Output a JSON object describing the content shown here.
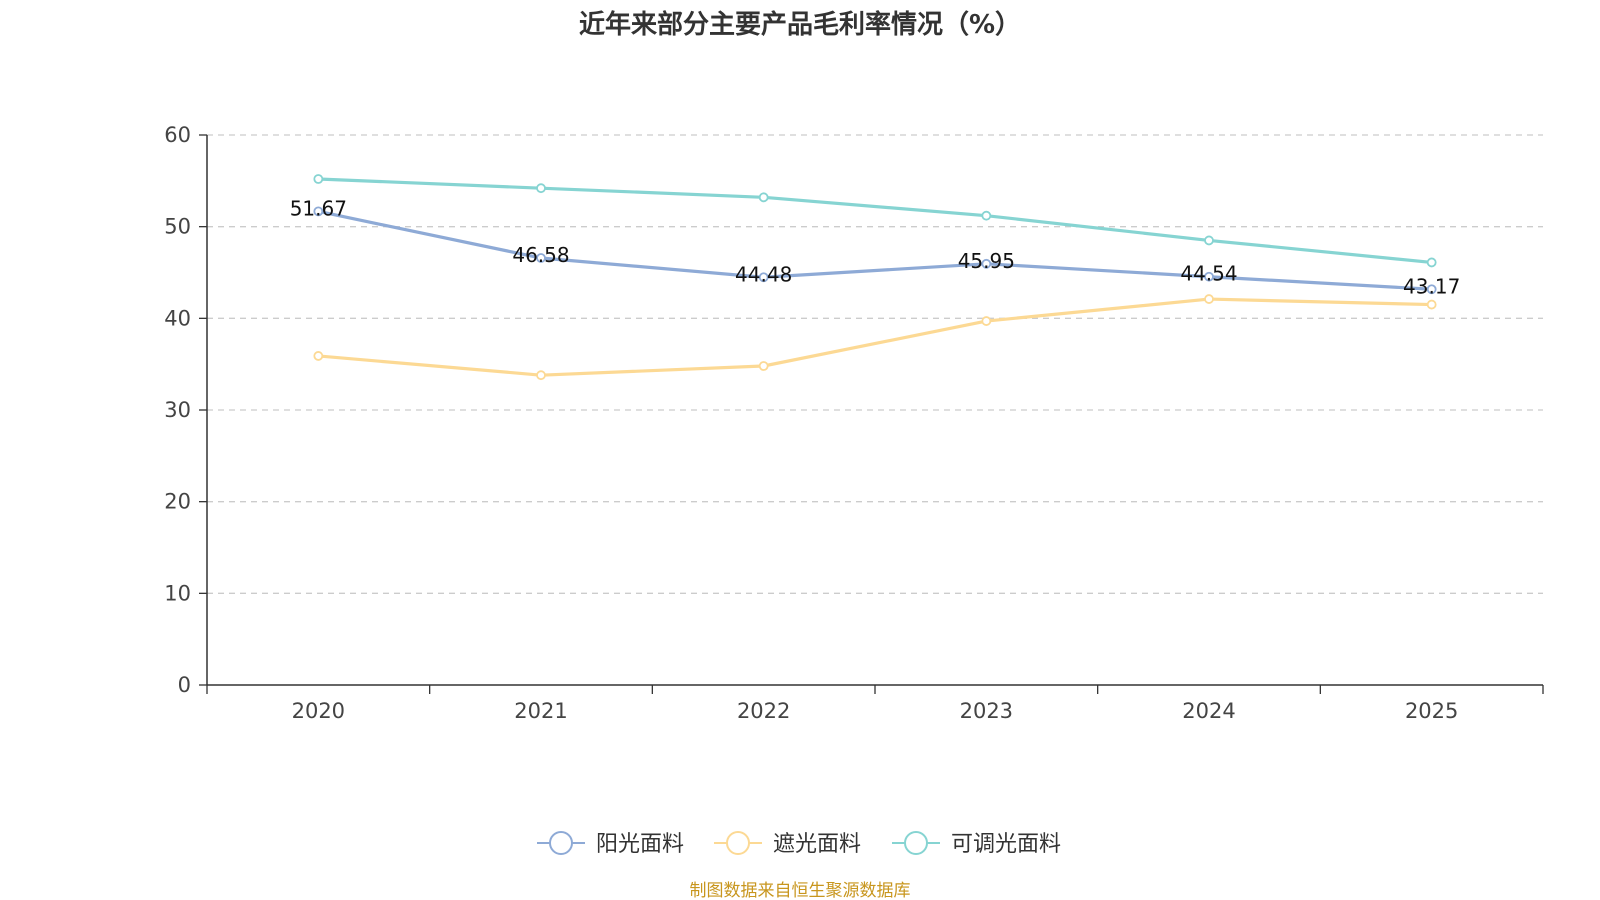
{
  "chart_data": {
    "type": "line",
    "title": "近年来部分主要产品毛利率情况（%）",
    "categories": [
      "2020",
      "2021",
      "2022",
      "2023",
      "2024",
      "2025"
    ],
    "ylim": [
      0,
      60
    ],
    "yticks": [
      0,
      10,
      20,
      30,
      40,
      50,
      60
    ],
    "ytick_labels": [
      "0",
      "10",
      "20",
      "30",
      "40",
      "50",
      "60"
    ],
    "grid": true,
    "legend_position": "bottom-center",
    "series": [
      {
        "name": "阳光面料",
        "color": "#8eaad6",
        "values": [
          51.67,
          46.58,
          44.48,
          45.95,
          44.54,
          43.17
        ],
        "labels": [
          "51.67",
          "46.58",
          "44.48",
          "45.95",
          "44.54",
          "43.17"
        ]
      },
      {
        "name": "遮光面料",
        "color": "#fcd994",
        "values": [
          35.9,
          33.8,
          34.8,
          39.7,
          42.1,
          41.5
        ]
      },
      {
        "name": "可调光面料",
        "color": "#86d4d2",
        "values": [
          55.2,
          54.2,
          53.2,
          51.2,
          48.5,
          46.1
        ]
      }
    ]
  },
  "source": {
    "text": "制图数据来自恒生聚源数据库",
    "color": "#c8961e"
  }
}
